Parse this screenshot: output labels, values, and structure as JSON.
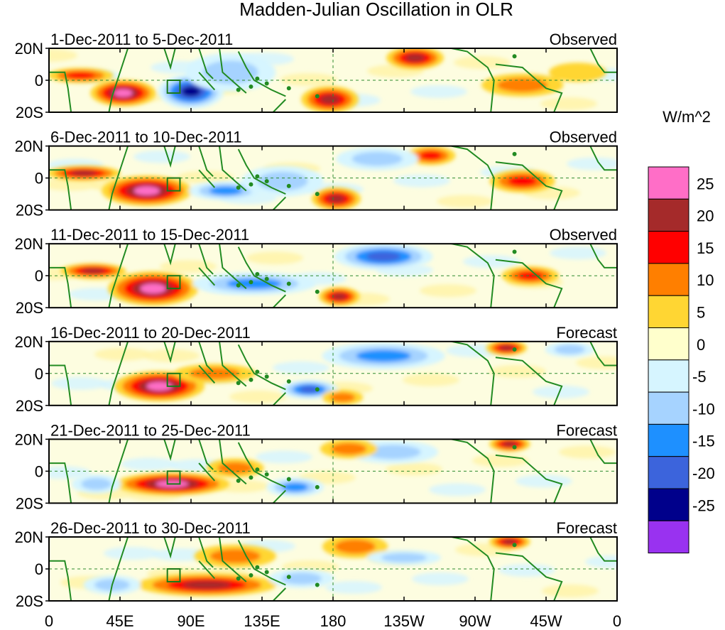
{
  "chart_data": {
    "type": "heatmap",
    "title": "Madden-Julian Oscillation in OLR",
    "units_label": "W/m^2",
    "lat_labels": [
      "20N",
      "0",
      "20S"
    ],
    "lon_labels": [
      "0",
      "45E",
      "90E",
      "135E",
      "180",
      "135W",
      "90W",
      "45W",
      "0"
    ],
    "lon_values": [
      0,
      45,
      90,
      135,
      180,
      225,
      270,
      315,
      360
    ],
    "lat_range": [
      -20,
      20
    ],
    "legend": {
      "tick_labels": [
        "25",
        "20",
        "15",
        "10",
        "5",
        "0",
        "-5",
        "-10",
        "-15",
        "-20",
        "-25"
      ],
      "tick_values": [
        25,
        20,
        15,
        10,
        5,
        0,
        -5,
        -10,
        -15,
        -20,
        -25
      ],
      "colors": [
        "#ff6ec7",
        "#a52a2a",
        "#ff0000",
        "#ff7f00",
        "#ffd633",
        "#ffffcc",
        "#d6f5ff",
        "#a6d3ff",
        "#1e90ff",
        "#3c64dc",
        "#00008b",
        "#9932f0"
      ]
    },
    "panels": [
      {
        "date_range": "1-Dec-2011 to 5-Dec-2011",
        "status": "Observed",
        "anomalies": [
          {
            "lon": 20,
            "lat": 3,
            "rlon": 16,
            "rlat": 4,
            "value": 15
          },
          {
            "lon": 47,
            "lat": -8,
            "rlon": 16,
            "rlat": 7,
            "value": 25
          },
          {
            "lon": 90,
            "lat": -7,
            "rlon": 16,
            "rlat": 9,
            "value": -25
          },
          {
            "lon": 115,
            "lat": 5,
            "rlon": 22,
            "rlat": 10,
            "value": -10
          },
          {
            "lon": 178,
            "lat": -12,
            "rlon": 14,
            "rlat": 7,
            "value": 20
          },
          {
            "lon": 232,
            "lat": 14,
            "rlon": 14,
            "rlat": 6,
            "value": 20
          },
          {
            "lon": 300,
            "lat": -3,
            "rlon": 20,
            "rlat": 6,
            "value": 10
          },
          {
            "lon": 335,
            "lat": 5,
            "rlon": 14,
            "rlat": 5,
            "value": 5
          }
        ]
      },
      {
        "date_range": "6-Dec-2011 to 10-Dec-2011",
        "status": "Observed",
        "anomalies": [
          {
            "lon": 22,
            "lat": 3,
            "rlon": 18,
            "rlat": 4,
            "value": 20
          },
          {
            "lon": 62,
            "lat": -8,
            "rlon": 22,
            "rlat": 8,
            "value": 25
          },
          {
            "lon": 112,
            "lat": -8,
            "rlon": 18,
            "rlat": 5,
            "value": -15
          },
          {
            "lon": 148,
            "lat": -2,
            "rlon": 20,
            "rlat": 8,
            "value": -10
          },
          {
            "lon": 182,
            "lat": -13,
            "rlon": 12,
            "rlat": 6,
            "value": 20
          },
          {
            "lon": 242,
            "lat": 14,
            "rlon": 12,
            "rlat": 5,
            "value": 15
          },
          {
            "lon": 300,
            "lat": -2,
            "rlon": 16,
            "rlat": 6,
            "value": 15
          },
          {
            "lon": 208,
            "lat": 12,
            "rlon": 20,
            "rlat": 6,
            "value": -10
          }
        ]
      },
      {
        "date_range": "11-Dec-2011 to 15-Dec-2011",
        "status": "Observed",
        "anomalies": [
          {
            "lon": 28,
            "lat": 3,
            "rlon": 16,
            "rlat": 4,
            "value": 20
          },
          {
            "lon": 66,
            "lat": -8,
            "rlon": 22,
            "rlat": 9,
            "value": 25
          },
          {
            "lon": 130,
            "lat": -5,
            "rlon": 30,
            "rlat": 6,
            "value": -15
          },
          {
            "lon": 212,
            "lat": 12,
            "rlon": 24,
            "rlat": 7,
            "value": -20
          },
          {
            "lon": 184,
            "lat": -13,
            "rlon": 10,
            "rlat": 5,
            "value": 20
          },
          {
            "lon": 305,
            "lat": 0,
            "rlon": 14,
            "rlat": 5,
            "value": 15
          }
        ]
      },
      {
        "date_range": "16-Dec-2011 to 20-Dec-2011",
        "status": "Forecast",
        "anomalies": [
          {
            "lon": 70,
            "lat": -8,
            "rlon": 22,
            "rlat": 8,
            "value": 25
          },
          {
            "lon": 105,
            "lat": 0,
            "rlon": 20,
            "rlat": 5,
            "value": 10
          },
          {
            "lon": 165,
            "lat": -10,
            "rlon": 14,
            "rlat": 5,
            "value": -20
          },
          {
            "lon": 212,
            "lat": 11,
            "rlon": 30,
            "rlat": 7,
            "value": -15
          },
          {
            "lon": 290,
            "lat": 16,
            "rlon": 10,
            "rlat": 4,
            "value": 20
          },
          {
            "lon": 186,
            "lat": -15,
            "rlon": 10,
            "rlat": 4,
            "value": 10
          },
          {
            "lon": 330,
            "lat": 15,
            "rlon": 12,
            "rlat": 4,
            "value": -10
          }
        ]
      },
      {
        "date_range": "21-Dec-2011 to 25-Dec-2011",
        "status": "Forecast",
        "anomalies": [
          {
            "lon": 78,
            "lat": -8,
            "rlon": 28,
            "rlat": 6,
            "value": 25
          },
          {
            "lon": 118,
            "lat": 2,
            "rlon": 14,
            "rlat": 5,
            "value": 10
          },
          {
            "lon": 156,
            "lat": -10,
            "rlon": 14,
            "rlat": 5,
            "value": -15
          },
          {
            "lon": 218,
            "lat": 12,
            "rlon": 22,
            "rlat": 6,
            "value": -10
          },
          {
            "lon": 292,
            "lat": 17,
            "rlon": 10,
            "rlat": 4,
            "value": 20
          },
          {
            "lon": 30,
            "lat": -8,
            "rlon": 12,
            "rlat": 5,
            "value": -10
          },
          {
            "lon": 190,
            "lat": 14,
            "rlon": 14,
            "rlat": 5,
            "value": 10
          }
        ]
      },
      {
        "date_range": "26-Dec-2011 to 30-Dec-2011",
        "status": "Forecast",
        "anomalies": [
          {
            "lon": 100,
            "lat": -10,
            "rlon": 34,
            "rlat": 6,
            "value": 20
          },
          {
            "lon": 118,
            "lat": 8,
            "rlon": 20,
            "rlat": 6,
            "value": 10
          },
          {
            "lon": 194,
            "lat": 14,
            "rlon": 16,
            "rlat": 6,
            "value": 10
          },
          {
            "lon": 292,
            "lat": 17,
            "rlon": 10,
            "rlat": 4,
            "value": 20
          },
          {
            "lon": 40,
            "lat": -10,
            "rlon": 14,
            "rlat": 5,
            "value": -10
          },
          {
            "lon": 160,
            "lat": -6,
            "rlon": 16,
            "rlat": 5,
            "value": -10
          },
          {
            "lon": 225,
            "lat": 7,
            "rlon": 18,
            "rlat": 4,
            "value": -10
          }
        ]
      }
    ]
  }
}
